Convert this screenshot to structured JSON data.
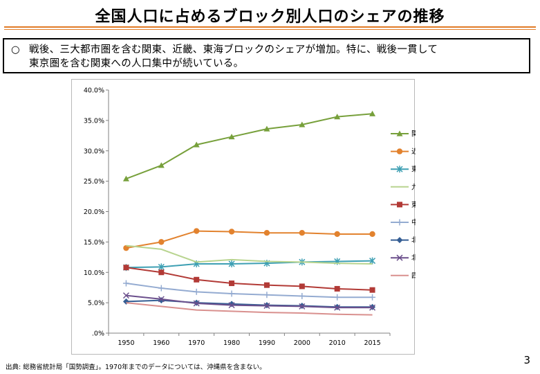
{
  "title": "全国人口に占めるブロック別人口のシェアの推移",
  "summary": {
    "bullet": "○",
    "line1": "戦後、三大都市圏を含む関東、近畿、東海ブロックのシェアが増加。特に、戦後一貫して",
    "line2": "東京圏を含む関東への人口集中が続いている。"
  },
  "source": "出典: 総務省統計局「国勢調査」。1970年までのデータについては、沖縄県を含まない。",
  "page_number": "3",
  "chart_data": {
    "type": "line",
    "x": [
      "1950",
      "1960",
      "1970",
      "1980",
      "1990",
      "2000",
      "2010",
      "2015"
    ],
    "ylim": [
      0,
      40
    ],
    "yticks": [
      {
        "value": 0,
        "label": ".0%"
      },
      {
        "value": 5,
        "label": "5.0%"
      },
      {
        "value": 10,
        "label": "10.0%"
      },
      {
        "value": 15,
        "label": "15.0%"
      },
      {
        "value": 20,
        "label": "20.0%"
      },
      {
        "value": 25,
        "label": "25.0%"
      },
      {
        "value": 30,
        "label": "30.0%"
      },
      {
        "value": 35,
        "label": "35.0%"
      },
      {
        "value": 40,
        "label": "40.0%"
      }
    ],
    "legend_position": "right",
    "series": [
      {
        "name": "関東",
        "color": "#77a03b",
        "marker": "triangle",
        "values": [
          25.4,
          27.6,
          31.0,
          32.3,
          33.6,
          34.3,
          35.6,
          36.1
        ]
      },
      {
        "name": "近畿",
        "color": "#e2822e",
        "marker": "circle",
        "values": [
          14.0,
          15.0,
          16.8,
          16.7,
          16.5,
          16.5,
          16.3,
          16.3
        ]
      },
      {
        "name": "東海",
        "color": "#3d9fb3",
        "marker": "star",
        "values": [
          10.8,
          10.9,
          11.4,
          11.4,
          11.5,
          11.7,
          11.8,
          11.9
        ]
      },
      {
        "name": "九州",
        "color": "#b8d48f",
        "marker": "none",
        "values": [
          14.4,
          13.8,
          11.7,
          12.1,
          11.8,
          11.7,
          11.5,
          11.4
        ]
      },
      {
        "name": "東北",
        "color": "#b23a36",
        "marker": "square",
        "values": [
          10.8,
          10.0,
          8.8,
          8.2,
          7.9,
          7.7,
          7.3,
          7.1
        ]
      },
      {
        "name": "中国",
        "color": "#94abd1",
        "marker": "plus",
        "values": [
          8.2,
          7.4,
          6.8,
          6.5,
          6.3,
          6.1,
          5.9,
          5.9
        ]
      },
      {
        "name": "北海道",
        "color": "#355e94",
        "marker": "diamond",
        "values": [
          5.2,
          5.4,
          5.0,
          4.8,
          4.6,
          4.5,
          4.3,
          4.3
        ]
      },
      {
        "name": "北陸",
        "color": "#6b4f8c",
        "marker": "x",
        "values": [
          6.2,
          5.6,
          4.9,
          4.6,
          4.5,
          4.4,
          4.2,
          4.2
        ]
      },
      {
        "name": "四国",
        "color": "#d9908e",
        "marker": "none",
        "values": [
          5.0,
          4.4,
          3.8,
          3.6,
          3.4,
          3.3,
          3.1,
          3.0
        ]
      }
    ]
  }
}
